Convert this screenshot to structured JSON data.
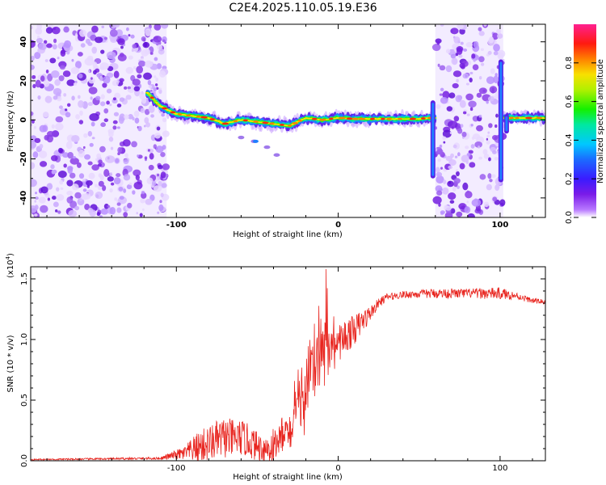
{
  "title": "C2E4.2025.110.05.19.E36",
  "chart_data": [
    {
      "type": "heatmap",
      "xlabel": "Height of straight line (km)",
      "ylabel": "Frequency (Hz)",
      "xlim": [
        -190,
        128
      ],
      "ylim": [
        -50,
        49
      ],
      "xticks": [
        -100,
        0,
        100
      ],
      "xtick_labels": [
        "-100",
        "0",
        "100"
      ],
      "yticks": [
        -40,
        -20,
        0,
        20,
        40
      ],
      "ytick_labels": [
        "-40",
        "-20",
        "0",
        "20",
        "40"
      ],
      "colorbar": {
        "label": "Normalized spectral amplitude",
        "range": [
          0,
          1
        ],
        "ticks": [
          0,
          0.2,
          0.4,
          0.6,
          0.8
        ],
        "tick_labels": [
          "0.0",
          "0.2",
          "0.4",
          "0.6",
          "0.8"
        ]
      },
      "ridge": {
        "description_points_x": [
          -118,
          -110,
          -100,
          -90,
          -80,
          -70,
          -60,
          -50,
          -40,
          -30,
          -20,
          -10,
          0,
          10,
          20,
          30,
          40,
          50,
          56,
          60,
          102,
          105,
          110,
          128
        ],
        "description_points_y": [
          14,
          7,
          3,
          2,
          1,
          -2,
          0,
          -1,
          -2,
          -3,
          1,
          0,
          1,
          0.5,
          0.5,
          0.5,
          0.5,
          0.5,
          1,
          1,
          1,
          1,
          1,
          1
        ]
      },
      "noise_regions": [
        [
          -190,
          -106
        ],
        [
          60,
          102
        ]
      ],
      "grid": false
    },
    {
      "type": "line",
      "xlabel": "Height of straight line (km)",
      "ylabel": "SNR (10 * v/v)",
      "y_multiplier": "(x10",
      "y_multiplier_exp": "4",
      "y_multiplier_close": ")",
      "xlim": [
        -190,
        128
      ],
      "ylim": [
        0,
        1.6
      ],
      "xticks": [
        -100,
        0,
        100
      ],
      "xtick_labels": [
        "-100",
        "0",
        "100"
      ],
      "yticks": [
        0,
        0.5,
        1.0,
        1.5
      ],
      "ytick_labels": [
        "0.0",
        "0.5",
        "1.0",
        "1.5"
      ],
      "series_color": "#e8251f",
      "envelope": {
        "x": [
          -190,
          -110,
          -100,
          -95,
          -90,
          -85,
          -80,
          -75,
          -70,
          -65,
          -60,
          -55,
          -50,
          -45,
          -40,
          -35,
          -30,
          -25,
          -20,
          -15,
          -10,
          -7,
          -5,
          0,
          5,
          10,
          15,
          20,
          25,
          30,
          40,
          60,
          80,
          100,
          110,
          120,
          128
        ],
        "base": [
          0.01,
          0.02,
          0.05,
          0.06,
          0.09,
          0.12,
          0.14,
          0.17,
          0.19,
          0.18,
          0.19,
          0.16,
          0.12,
          0.1,
          0.11,
          0.18,
          0.25,
          0.4,
          0.6,
          0.75,
          0.9,
          0.9,
          0.95,
          0.97,
          1.03,
          1.08,
          1.15,
          1.22,
          1.3,
          1.35,
          1.37,
          1.38,
          1.38,
          1.38,
          1.36,
          1.32,
          1.31
        ],
        "amp": [
          0.005,
          0.01,
          0.04,
          0.06,
          0.1,
          0.14,
          0.15,
          0.16,
          0.17,
          0.16,
          0.15,
          0.14,
          0.12,
          0.12,
          0.2,
          0.22,
          0.3,
          0.35,
          0.45,
          0.45,
          0.5,
          0.55,
          0.35,
          0.15,
          0.15,
          0.12,
          0.1,
          0.06,
          0.04,
          0.03,
          0.03,
          0.04,
          0.04,
          0.05,
          0.03,
          0.02,
          0.02
        ]
      },
      "peak": {
        "x": -7.5,
        "y": 1.58
      },
      "grid": false
    }
  ]
}
